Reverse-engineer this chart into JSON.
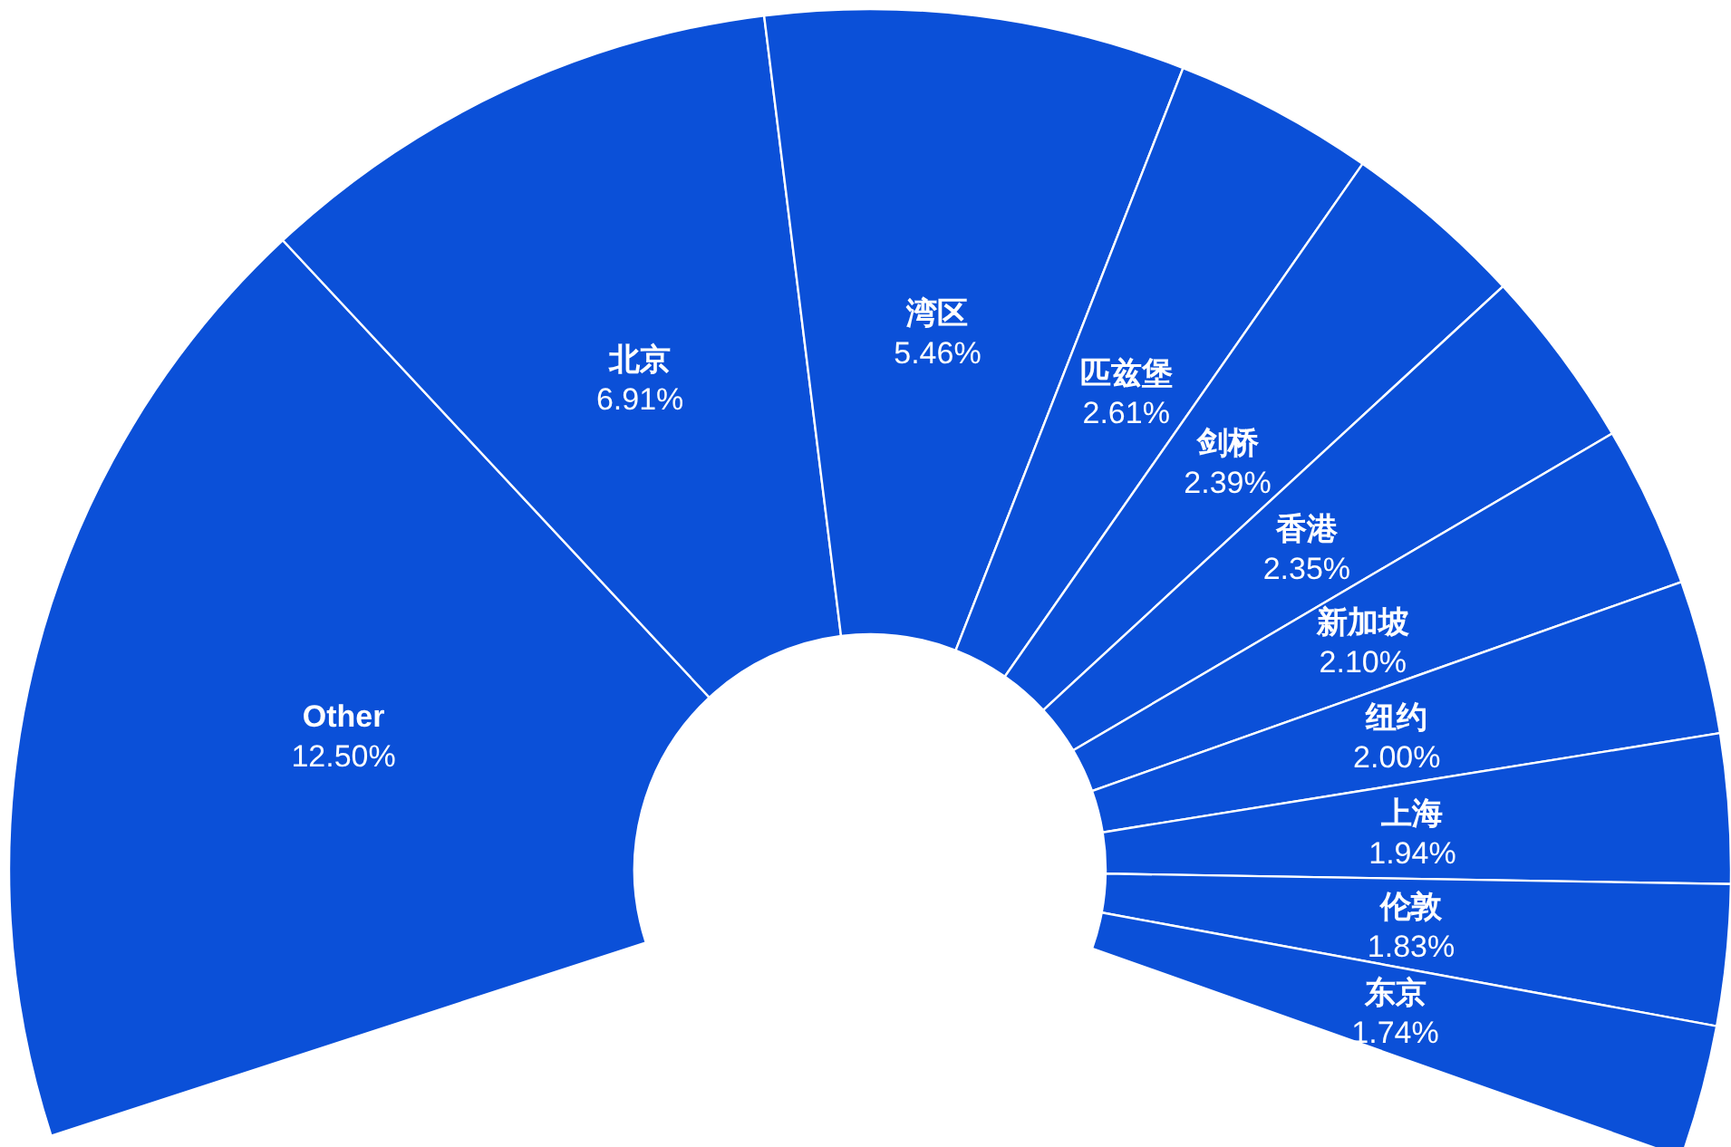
{
  "chart_data": {
    "type": "donut",
    "categories": [
      "Other",
      "北京",
      "湾区",
      "匹兹堡",
      "剑桥",
      "香港",
      "新加坡",
      "纽约",
      "上海",
      "伦敦",
      "东京"
    ],
    "values": [
      12.5,
      6.91,
      5.46,
      2.61,
      2.39,
      2.35,
      2.1,
      2.0,
      1.94,
      1.83,
      1.74
    ],
    "value_labels": [
      "12.50%",
      "6.91%",
      "5.46%",
      "2.61%",
      "2.39%",
      "2.35%",
      "2.10%",
      "2.00%",
      "1.94%",
      "1.83%",
      "1.74%"
    ],
    "colors": [
      "#0b50d8",
      "#0b50d8",
      "#0b50d8",
      "#0b50d8",
      "#0b50d8",
      "#0b50d8",
      "#0b50d8",
      "#0b50d8",
      "#0b50d8",
      "#0b50d8",
      "#0b50d8"
    ]
  }
}
